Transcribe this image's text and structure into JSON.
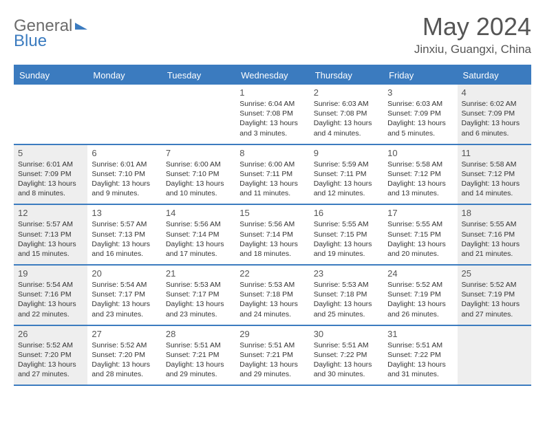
{
  "logo": {
    "text_a": "General",
    "text_b": "Blue"
  },
  "colors": {
    "header_blue": "#3b7bbf",
    "alt_bg": "#eeeeee",
    "text": "#333333",
    "muted": "#555555",
    "background": "#ffffff"
  },
  "title": "May 2024",
  "location": "Jinxiu, Guangxi, China",
  "day_labels": [
    "Sunday",
    "Monday",
    "Tuesday",
    "Wednesday",
    "Thursday",
    "Friday",
    "Saturday"
  ],
  "weeks": [
    [
      {
        "n": "",
        "sun": "",
        "set": "",
        "day": "",
        "alt": false
      },
      {
        "n": "",
        "sun": "",
        "set": "",
        "day": "",
        "alt": false
      },
      {
        "n": "",
        "sun": "",
        "set": "",
        "day": "",
        "alt": false
      },
      {
        "n": "1",
        "sun": "Sunrise: 6:04 AM",
        "set": "Sunset: 7:08 PM",
        "day": "Daylight: 13 hours and 3 minutes.",
        "alt": false
      },
      {
        "n": "2",
        "sun": "Sunrise: 6:03 AM",
        "set": "Sunset: 7:08 PM",
        "day": "Daylight: 13 hours and 4 minutes.",
        "alt": false
      },
      {
        "n": "3",
        "sun": "Sunrise: 6:03 AM",
        "set": "Sunset: 7:09 PM",
        "day": "Daylight: 13 hours and 5 minutes.",
        "alt": false
      },
      {
        "n": "4",
        "sun": "Sunrise: 6:02 AM",
        "set": "Sunset: 7:09 PM",
        "day": "Daylight: 13 hours and 6 minutes.",
        "alt": true
      }
    ],
    [
      {
        "n": "5",
        "sun": "Sunrise: 6:01 AM",
        "set": "Sunset: 7:09 PM",
        "day": "Daylight: 13 hours and 8 minutes.",
        "alt": true
      },
      {
        "n": "6",
        "sun": "Sunrise: 6:01 AM",
        "set": "Sunset: 7:10 PM",
        "day": "Daylight: 13 hours and 9 minutes.",
        "alt": false
      },
      {
        "n": "7",
        "sun": "Sunrise: 6:00 AM",
        "set": "Sunset: 7:10 PM",
        "day": "Daylight: 13 hours and 10 minutes.",
        "alt": false
      },
      {
        "n": "8",
        "sun": "Sunrise: 6:00 AM",
        "set": "Sunset: 7:11 PM",
        "day": "Daylight: 13 hours and 11 minutes.",
        "alt": false
      },
      {
        "n": "9",
        "sun": "Sunrise: 5:59 AM",
        "set": "Sunset: 7:11 PM",
        "day": "Daylight: 13 hours and 12 minutes.",
        "alt": false
      },
      {
        "n": "10",
        "sun": "Sunrise: 5:58 AM",
        "set": "Sunset: 7:12 PM",
        "day": "Daylight: 13 hours and 13 minutes.",
        "alt": false
      },
      {
        "n": "11",
        "sun": "Sunrise: 5:58 AM",
        "set": "Sunset: 7:12 PM",
        "day": "Daylight: 13 hours and 14 minutes.",
        "alt": true
      }
    ],
    [
      {
        "n": "12",
        "sun": "Sunrise: 5:57 AM",
        "set": "Sunset: 7:13 PM",
        "day": "Daylight: 13 hours and 15 minutes.",
        "alt": true
      },
      {
        "n": "13",
        "sun": "Sunrise: 5:57 AM",
        "set": "Sunset: 7:13 PM",
        "day": "Daylight: 13 hours and 16 minutes.",
        "alt": false
      },
      {
        "n": "14",
        "sun": "Sunrise: 5:56 AM",
        "set": "Sunset: 7:14 PM",
        "day": "Daylight: 13 hours and 17 minutes.",
        "alt": false
      },
      {
        "n": "15",
        "sun": "Sunrise: 5:56 AM",
        "set": "Sunset: 7:14 PM",
        "day": "Daylight: 13 hours and 18 minutes.",
        "alt": false
      },
      {
        "n": "16",
        "sun": "Sunrise: 5:55 AM",
        "set": "Sunset: 7:15 PM",
        "day": "Daylight: 13 hours and 19 minutes.",
        "alt": false
      },
      {
        "n": "17",
        "sun": "Sunrise: 5:55 AM",
        "set": "Sunset: 7:15 PM",
        "day": "Daylight: 13 hours and 20 minutes.",
        "alt": false
      },
      {
        "n": "18",
        "sun": "Sunrise: 5:55 AM",
        "set": "Sunset: 7:16 PM",
        "day": "Daylight: 13 hours and 21 minutes.",
        "alt": true
      }
    ],
    [
      {
        "n": "19",
        "sun": "Sunrise: 5:54 AM",
        "set": "Sunset: 7:16 PM",
        "day": "Daylight: 13 hours and 22 minutes.",
        "alt": true
      },
      {
        "n": "20",
        "sun": "Sunrise: 5:54 AM",
        "set": "Sunset: 7:17 PM",
        "day": "Daylight: 13 hours and 23 minutes.",
        "alt": false
      },
      {
        "n": "21",
        "sun": "Sunrise: 5:53 AM",
        "set": "Sunset: 7:17 PM",
        "day": "Daylight: 13 hours and 23 minutes.",
        "alt": false
      },
      {
        "n": "22",
        "sun": "Sunrise: 5:53 AM",
        "set": "Sunset: 7:18 PM",
        "day": "Daylight: 13 hours and 24 minutes.",
        "alt": false
      },
      {
        "n": "23",
        "sun": "Sunrise: 5:53 AM",
        "set": "Sunset: 7:18 PM",
        "day": "Daylight: 13 hours and 25 minutes.",
        "alt": false
      },
      {
        "n": "24",
        "sun": "Sunrise: 5:52 AM",
        "set": "Sunset: 7:19 PM",
        "day": "Daylight: 13 hours and 26 minutes.",
        "alt": false
      },
      {
        "n": "25",
        "sun": "Sunrise: 5:52 AM",
        "set": "Sunset: 7:19 PM",
        "day": "Daylight: 13 hours and 27 minutes.",
        "alt": true
      }
    ],
    [
      {
        "n": "26",
        "sun": "Sunrise: 5:52 AM",
        "set": "Sunset: 7:20 PM",
        "day": "Daylight: 13 hours and 27 minutes.",
        "alt": true
      },
      {
        "n": "27",
        "sun": "Sunrise: 5:52 AM",
        "set": "Sunset: 7:20 PM",
        "day": "Daylight: 13 hours and 28 minutes.",
        "alt": false
      },
      {
        "n": "28",
        "sun": "Sunrise: 5:51 AM",
        "set": "Sunset: 7:21 PM",
        "day": "Daylight: 13 hours and 29 minutes.",
        "alt": false
      },
      {
        "n": "29",
        "sun": "Sunrise: 5:51 AM",
        "set": "Sunset: 7:21 PM",
        "day": "Daylight: 13 hours and 29 minutes.",
        "alt": false
      },
      {
        "n": "30",
        "sun": "Sunrise: 5:51 AM",
        "set": "Sunset: 7:22 PM",
        "day": "Daylight: 13 hours and 30 minutes.",
        "alt": false
      },
      {
        "n": "31",
        "sun": "Sunrise: 5:51 AM",
        "set": "Sunset: 7:22 PM",
        "day": "Daylight: 13 hours and 31 minutes.",
        "alt": false
      },
      {
        "n": "",
        "sun": "",
        "set": "",
        "day": "",
        "alt": true
      }
    ]
  ]
}
